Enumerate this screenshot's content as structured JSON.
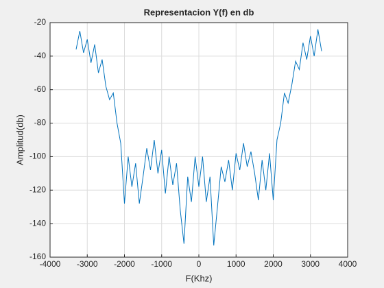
{
  "chart_data": {
    "type": "line",
    "title": "Representacion Y(f) en db",
    "x_label": "F(Khz)",
    "y_label": "Amplitud(db)",
    "x": [
      -3300,
      -3200,
      -3100,
      -3000,
      -2900,
      -2800,
      -2700,
      -2600,
      -2500,
      -2400,
      -2300,
      -2200,
      -2100,
      -2000,
      -1900,
      -1800,
      -1700,
      -1600,
      -1500,
      -1400,
      -1300,
      -1200,
      -1100,
      -1000,
      -900,
      -800,
      -700,
      -600,
      -500,
      -400,
      -300,
      -200,
      -100,
      0,
      100,
      200,
      300,
      400,
      500,
      600,
      700,
      800,
      900,
      1000,
      1100,
      1200,
      1300,
      1400,
      1500,
      1600,
      1700,
      1800,
      1900,
      2000,
      2100,
      2200,
      2300,
      2400,
      2500,
      2600,
      2700,
      2800,
      2900,
      3000,
      3100,
      3200,
      3300
    ],
    "series": [
      {
        "name": "Y(f)",
        "color": "#0072bd",
        "values": [
          -36,
          -25,
          -38,
          -30,
          -44,
          -33,
          -50,
          -42,
          -58,
          -66,
          -62,
          -80,
          -92,
          -128,
          -100,
          -118,
          -104,
          -128,
          -112,
          -95,
          -108,
          -90,
          -110,
          -96,
          -122,
          -100,
          -117,
          -104,
          -132,
          -152,
          -112,
          -127,
          -100,
          -118,
          -100,
          -127,
          -112,
          -153,
          -130,
          -106,
          -115,
          -102,
          -120,
          -98,
          -108,
          -92,
          -106,
          -97,
          -110,
          -126,
          -102,
          -120,
          -98,
          -126,
          -90,
          -80,
          -62,
          -68,
          -57,
          -43,
          -48,
          -32,
          -42,
          -28,
          -40,
          -24,
          -37
        ]
      }
    ],
    "xlim": [
      -4000,
      4000
    ],
    "xticks": [
      -4000,
      -3000,
      -2000,
      -1000,
      0,
      1000,
      2000,
      3000,
      4000
    ],
    "ylim": [
      -160,
      -20
    ],
    "yticks": [
      -160,
      -140,
      -120,
      -100,
      -80,
      -60,
      -40,
      -20
    ],
    "grid": true
  }
}
